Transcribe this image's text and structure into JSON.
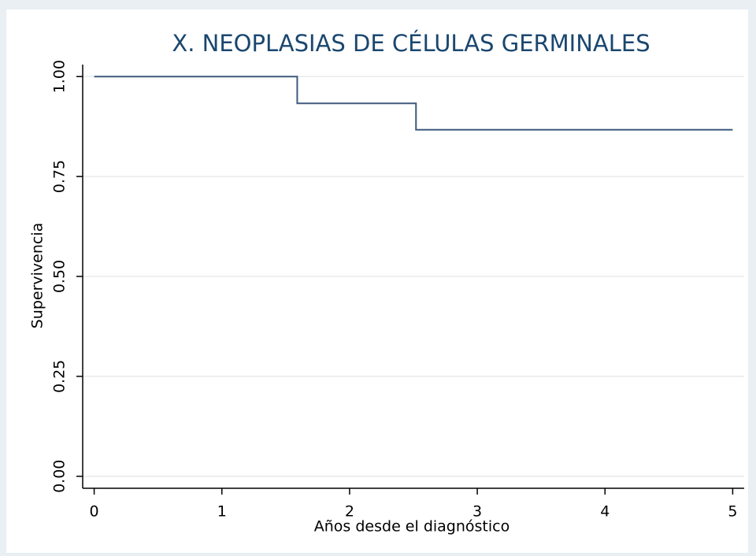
{
  "chart_data": {
    "type": "line",
    "title": "X. NEOPLASIAS DE CÉLULAS GERMINALES",
    "x_label": "Años desde el diagnóstico",
    "y_label": "Supervivencia",
    "series": [
      {
        "color": "#3e5a7e",
        "x": [
          0,
          1.59,
          1.59,
          2.52,
          2.52,
          5
        ],
        "values": [
          1,
          1,
          0.933,
          0.933,
          0.867,
          0.867
        ]
      }
    ],
    "xlim": [
      -0.09,
      5.09
    ],
    "xticks": [
      0,
      1,
      2,
      3,
      4,
      5
    ],
    "ylim": [
      -0.03,
      1.03
    ],
    "yticks": [
      {
        "value": 0,
        "label": "0.00"
      },
      {
        "value": 0.25,
        "label": "0.25"
      },
      {
        "value": 0.5,
        "label": "0.50"
      },
      {
        "value": 0.75,
        "label": "0.75"
      },
      {
        "value": 1,
        "label": "1.00"
      }
    ],
    "grid": true
  }
}
